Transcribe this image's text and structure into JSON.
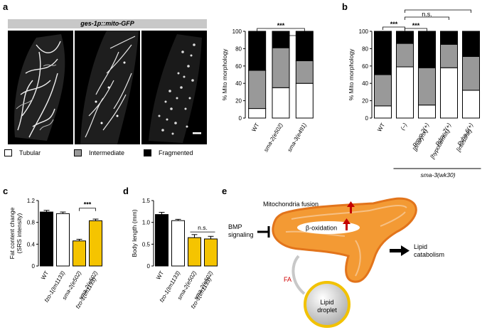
{
  "panels": {
    "a": {
      "letter": "a",
      "banner": "ges-1p::mito-GFP",
      "legend": [
        {
          "label": "Tubular",
          "color": "#ffffff"
        },
        {
          "label": "Intermediate",
          "color": "#999999"
        },
        {
          "label": "Fragmented",
          "color": "#000000"
        }
      ]
    },
    "b": {
      "letter": "b",
      "group_label": "sma-3(wk30)"
    },
    "c": {
      "letter": "c"
    },
    "d": {
      "letter": "d"
    },
    "e": {
      "letter": "e",
      "labels": {
        "fusion": "Mitochondria fusion",
        "bmp": "BMP signaling",
        "bmp_line1": "BMP",
        "bmp_line2": "signaling",
        "beta": "β-oxidation",
        "lipid_cat_line1": "Lipid",
        "lipid_cat_line2": "catabolism",
        "fa": "FA",
        "droplet_line1": "Lipid",
        "droplet_line2": "droplet"
      }
    }
  },
  "chart_data": [
    {
      "id": "a-bars",
      "type": "bar",
      "stacked": true,
      "ylabel": "% Mito morphology",
      "ylim": [
        0,
        100
      ],
      "yticks": [
        0,
        20,
        40,
        60,
        80,
        100
      ],
      "categories": [
        "WT",
        "sma-2(e502)",
        "sma-3(e491)"
      ],
      "series": [
        {
          "name": "Tubular",
          "color": "#ffffff",
          "values": [
            11,
            35,
            40
          ]
        },
        {
          "name": "Intermediate",
          "color": "#999999",
          "values": [
            44,
            46,
            26
          ]
        },
        {
          "name": "Fragmented",
          "color": "#000000",
          "values": [
            45,
            19,
            34
          ]
        }
      ],
      "annotations": [
        "***"
      ]
    },
    {
      "id": "b-bars",
      "type": "bar",
      "stacked": true,
      "ylabel": "% Mito morphology",
      "ylim": [
        0,
        100
      ],
      "yticks": [
        0,
        20,
        40,
        60,
        80,
        100
      ],
      "categories": [
        "WT",
        "(–)",
        "Pmyo-2(+) [pharynx]",
        "Pdpy-7(+) [hypodermis]",
        "Pvha-6(+) [intestine]"
      ],
      "category_lines": [
        [
          "WT"
        ],
        [
          "(–)"
        ],
        [
          "Pmyo-2(+)",
          "[pharynx]"
        ],
        [
          "Pdpy-7(+)",
          "[hypodermis]"
        ],
        [
          "Pvha-6(+)",
          "[intestine]"
        ]
      ],
      "series": [
        {
          "name": "Tubular",
          "color": "#ffffff",
          "values": [
            14,
            59,
            15,
            58,
            32
          ]
        },
        {
          "name": "Intermediate",
          "color": "#999999",
          "values": [
            36,
            27,
            43,
            27,
            39
          ]
        },
        {
          "name": "Fragmented",
          "color": "#000000",
          "values": [
            50,
            14,
            42,
            15,
            29
          ]
        }
      ],
      "annotations": [
        "***",
        "n.s.",
        "***",
        "***"
      ]
    },
    {
      "id": "c-bars",
      "type": "bar",
      "ylabel_line1": "Fat content change",
      "ylabel_line2": "(SRS intensity)",
      "ylim": [
        0,
        1.2
      ],
      "yticks": [
        0,
        0.4,
        0.8,
        1.2
      ],
      "yticklabels": [
        "0",
        "0.4",
        "0.8",
        "1.2"
      ],
      "categories": [
        "WT",
        "fzo-1(tm1133)",
        "sma-2(e502)",
        "sma-2(e502) fzo-1(tm1133)"
      ],
      "category_lines": [
        [
          "WT"
        ],
        [
          "fzo-1(tm1133)"
        ],
        [
          "sma-2(e502)"
        ],
        [
          "sma-2(e502)",
          "fzo-1(tm1133)"
        ]
      ],
      "values": [
        0.99,
        0.96,
        0.46,
        0.83
      ],
      "errors": [
        0.03,
        0.03,
        0.03,
        0.03
      ],
      "colors": [
        "#000000",
        "#ffffff",
        "#f5c400",
        "#f5c400"
      ],
      "annotations": [
        "***"
      ]
    },
    {
      "id": "d-bars",
      "type": "bar",
      "ylabel": "Body length (mm)",
      "ylim": [
        0,
        1.5
      ],
      "yticks": [
        0,
        0.5,
        1.0,
        1.5
      ],
      "yticklabels": [
        "0",
        "0.5",
        "1.0",
        "1.5"
      ],
      "categories": [
        "WT",
        "fzo-1(tm1133)",
        "sma-2(e502)",
        "sma-2(e502) fzo-1(tm1133)"
      ],
      "category_lines": [
        [
          "WT"
        ],
        [
          "fzo-1(tm1133)"
        ],
        [
          "sma-2(e502)"
        ],
        [
          "sma-2(e502)",
          "fzo-1(tm1133)"
        ]
      ],
      "values": [
        1.18,
        1.04,
        0.65,
        0.62
      ],
      "errors": [
        0.05,
        0.03,
        0.07,
        0.06
      ],
      "colors": [
        "#000000",
        "#ffffff",
        "#f5c400",
        "#f5c400"
      ],
      "annotations": [
        "n.s."
      ]
    }
  ]
}
